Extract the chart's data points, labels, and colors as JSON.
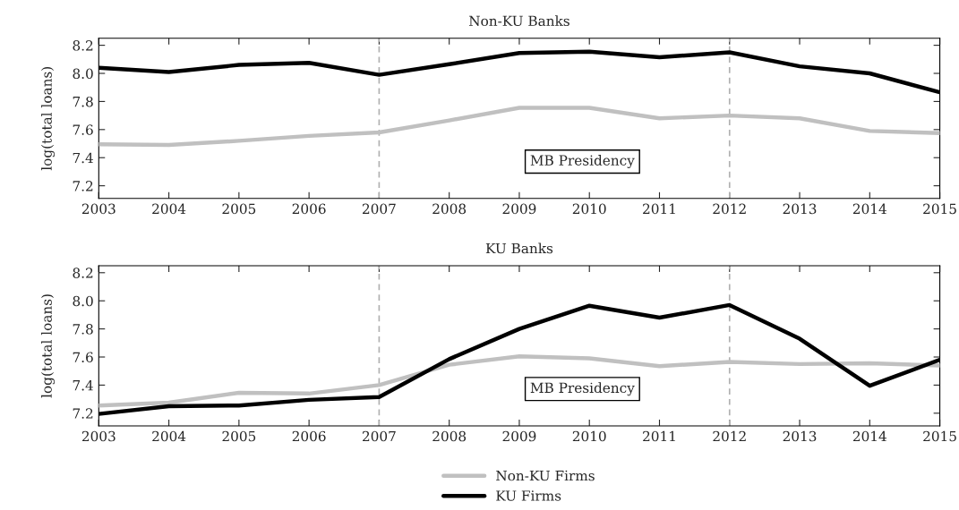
{
  "chart_data": [
    {
      "type": "line",
      "title": "Non-KU Banks",
      "ylabel": "log(total loans)",
      "x": [
        2003,
        2004,
        2005,
        2006,
        2007,
        2008,
        2009,
        2010,
        2011,
        2012,
        2013,
        2014,
        2015
      ],
      "series": [
        {
          "color": "#c0c0c0",
          "values": [
            7.495,
            7.49,
            7.52,
            7.555,
            7.58,
            7.665,
            7.755,
            7.755,
            7.68,
            7.7,
            7.68,
            7.59,
            7.575
          ]
        },
        {
          "color": "#000000",
          "values": [
            8.04,
            8.01,
            8.06,
            8.075,
            7.99,
            8.065,
            8.145,
            8.155,
            8.115,
            8.15,
            8.05,
            8.0,
            7.865
          ]
        }
      ],
      "xlim": [
        2003,
        2015
      ],
      "xticks": [
        2003,
        2004,
        2005,
        2006,
        2007,
        2008,
        2009,
        2010,
        2011,
        2012,
        2013,
        2014,
        2015
      ],
      "ylim": [
        7.11,
        8.25
      ],
      "yticks": [
        {
          "value": 7.2,
          "label": "7.2"
        },
        {
          "value": 7.4,
          "label": "7.4"
        },
        {
          "value": 7.6,
          "label": "7.6"
        },
        {
          "value": 7.8,
          "label": "7.8"
        },
        {
          "value": 8.0,
          "label": "8.0"
        },
        {
          "value": 8.2,
          "label": "8.2"
        }
      ],
      "ref_lines": [
        {
          "axis": "x",
          "value": 2007,
          "color": "#b0b0b0",
          "line_style": "dashed"
        },
        {
          "axis": "x",
          "value": 2012,
          "color": "#b0b0b0",
          "line_style": "dashed"
        }
      ],
      "annotations": [
        "MB Presidency"
      ],
      "grid": false,
      "marker": "none",
      "line_style": "solid"
    },
    {
      "type": "line",
      "title": "KU Banks",
      "ylabel": "log(total loans)",
      "x": [
        2003,
        2004,
        2005,
        2006,
        2007,
        2008,
        2009,
        2010,
        2011,
        2012,
        2013,
        2014,
        2015
      ],
      "series": [
        {
          "name": "Non-KU Firms",
          "color": "#c0c0c0",
          "values": [
            7.255,
            7.275,
            7.345,
            7.34,
            7.4,
            7.545,
            7.605,
            7.59,
            7.535,
            7.565,
            7.55,
            7.555,
            7.54
          ]
        },
        {
          "name": "KU Firms",
          "color": "#000000",
          "values": [
            7.195,
            7.25,
            7.255,
            7.295,
            7.315,
            7.585,
            7.8,
            7.965,
            7.88,
            7.97,
            7.73,
            7.395,
            7.58
          ]
        }
      ],
      "xlim": [
        2003,
        2015
      ],
      "xticks": [
        2003,
        2004,
        2005,
        2006,
        2007,
        2008,
        2009,
        2010,
        2011,
        2012,
        2013,
        2014,
        2015
      ],
      "ylim": [
        7.11,
        8.25
      ],
      "yticks": [
        {
          "value": 7.2,
          "label": "7.2"
        },
        {
          "value": 7.4,
          "label": "7.4"
        },
        {
          "value": 7.6,
          "label": "7.6"
        },
        {
          "value": 7.8,
          "label": "7.8"
        },
        {
          "value": 8.0,
          "label": "8.0"
        },
        {
          "value": 8.2,
          "label": "8.2"
        }
      ],
      "ref_lines": [
        {
          "axis": "x",
          "value": 2007,
          "color": "#b0b0b0",
          "line_style": "dashed"
        },
        {
          "axis": "x",
          "value": 2012,
          "color": "#b0b0b0",
          "line_style": "dashed"
        }
      ],
      "annotations": [
        "MB Presidency"
      ],
      "grid": false,
      "legend": "bottom",
      "marker": "none",
      "line_style": "solid"
    }
  ]
}
